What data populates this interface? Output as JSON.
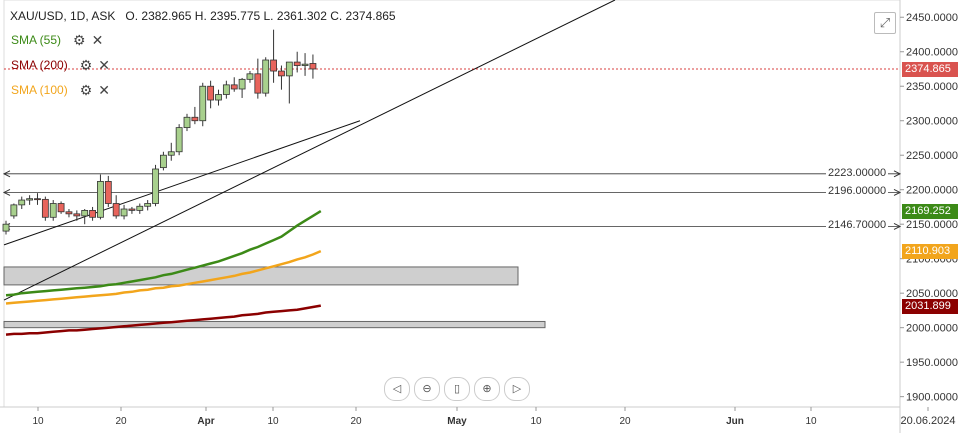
{
  "header": {
    "symbol": "XAU/USD, 1D, ASK",
    "ohlc": "O. 2382.965 H. 2395.775 L. 2361.302 C. 2374.865"
  },
  "legend": [
    {
      "label": "SMA (55)",
      "color": "#3c8a17"
    },
    {
      "label": "SMA (200)",
      "color": "#8b0000"
    },
    {
      "label": "SMA (100)",
      "color": "#f2a51c"
    }
  ],
  "icons": {
    "settings": "gear-icon",
    "remove": "close-icon",
    "expand": "expand-icon"
  },
  "hlines": [
    {
      "value": 2223.0,
      "label": "2223.00000"
    },
    {
      "value": 2196.0,
      "label": "2196.00000"
    },
    {
      "value": 2146.7,
      "label": "2146.70000"
    }
  ],
  "axis_tags": [
    {
      "value": 2374.865,
      "label": "2374.865",
      "color": "#d9534f"
    },
    {
      "value": 2169.252,
      "label": "2169.252",
      "color": "#3c8a17"
    },
    {
      "value": 2110.903,
      "label": "2110.903",
      "color": "#f2a51c"
    },
    {
      "value": 2031.899,
      "label": "2031.899",
      "color": "#8b0000"
    }
  ],
  "chart_data": {
    "type": "candlestick",
    "y_ticks": [
      "2450.0000",
      "2400.0000",
      "2350.0000",
      "2300.0000",
      "2250.0000",
      "2200.0000",
      "2150.0000",
      "2100.0000",
      "2050.0000",
      "2000.0000",
      "1950.0000",
      "1900.0000"
    ],
    "x_ticks": [
      "10",
      "20",
      "Apr",
      "10",
      "20",
      "May",
      "10",
      "20",
      "Jun",
      "10",
      "20.06.2024"
    ],
    "ylim": [
      1885,
      2475
    ],
    "candles": [
      {
        "o": 2140,
        "h": 2155,
        "l": 2135,
        "c": 2150
      },
      {
        "o": 2162,
        "h": 2180,
        "l": 2158,
        "c": 2178
      },
      {
        "o": 2178,
        "h": 2190,
        "l": 2172,
        "c": 2185
      },
      {
        "o": 2185,
        "h": 2192,
        "l": 2178,
        "c": 2187
      },
      {
        "o": 2187,
        "h": 2195,
        "l": 2178,
        "c": 2186
      },
      {
        "o": 2186,
        "h": 2190,
        "l": 2155,
        "c": 2160
      },
      {
        "o": 2160,
        "h": 2185,
        "l": 2155,
        "c": 2180
      },
      {
        "o": 2180,
        "h": 2183,
        "l": 2165,
        "c": 2168
      },
      {
        "o": 2168,
        "h": 2172,
        "l": 2160,
        "c": 2165
      },
      {
        "o": 2165,
        "h": 2170,
        "l": 2155,
        "c": 2162
      },
      {
        "o": 2162,
        "h": 2172,
        "l": 2150,
        "c": 2170
      },
      {
        "o": 2170,
        "h": 2175,
        "l": 2155,
        "c": 2160
      },
      {
        "o": 2160,
        "h": 2222,
        "l": 2157,
        "c": 2212
      },
      {
        "o": 2212,
        "h": 2220,
        "l": 2175,
        "c": 2180
      },
      {
        "o": 2180,
        "h": 2192,
        "l": 2158,
        "c": 2162
      },
      {
        "o": 2162,
        "h": 2178,
        "l": 2157,
        "c": 2172
      },
      {
        "o": 2172,
        "h": 2175,
        "l": 2165,
        "c": 2170
      },
      {
        "o": 2170,
        "h": 2180,
        "l": 2165,
        "c": 2176
      },
      {
        "o": 2176,
        "h": 2185,
        "l": 2170,
        "c": 2180
      },
      {
        "o": 2180,
        "h": 2236,
        "l": 2176,
        "c": 2230
      },
      {
        "o": 2232,
        "h": 2255,
        "l": 2228,
        "c": 2250
      },
      {
        "o": 2250,
        "h": 2268,
        "l": 2242,
        "c": 2255
      },
      {
        "o": 2255,
        "h": 2295,
        "l": 2250,
        "c": 2290
      },
      {
        "o": 2290,
        "h": 2310,
        "l": 2285,
        "c": 2305
      },
      {
        "o": 2305,
        "h": 2320,
        "l": 2295,
        "c": 2300
      },
      {
        "o": 2300,
        "h": 2355,
        "l": 2292,
        "c": 2350
      },
      {
        "o": 2350,
        "h": 2358,
        "l": 2318,
        "c": 2330
      },
      {
        "o": 2330,
        "h": 2345,
        "l": 2322,
        "c": 2338
      },
      {
        "o": 2338,
        "h": 2358,
        "l": 2332,
        "c": 2352
      },
      {
        "o": 2352,
        "h": 2363,
        "l": 2342,
        "c": 2346
      },
      {
        "o": 2346,
        "h": 2362,
        "l": 2333,
        "c": 2360
      },
      {
        "o": 2360,
        "h": 2372,
        "l": 2355,
        "c": 2368
      },
      {
        "o": 2368,
        "h": 2390,
        "l": 2332,
        "c": 2340
      },
      {
        "o": 2340,
        "h": 2392,
        "l": 2335,
        "c": 2388
      },
      {
        "o": 2388,
        "h": 2432,
        "l": 2355,
        "c": 2372
      },
      {
        "o": 2372,
        "h": 2380,
        "l": 2345,
        "c": 2365
      },
      {
        "o": 2365,
        "h": 2385,
        "l": 2325,
        "c": 2385
      },
      {
        "o": 2385,
        "h": 2400,
        "l": 2370,
        "c": 2380
      },
      {
        "o": 2380,
        "h": 2398,
        "l": 2365,
        "c": 2382
      },
      {
        "o": 2383,
        "h": 2396,
        "l": 2361,
        "c": 2375
      }
    ],
    "sma55": [
      2047,
      2048,
      2050,
      2051,
      2052,
      2053,
      2054,
      2055,
      2056,
      2057,
      2058,
      2059,
      2060,
      2062,
      2063,
      2065,
      2067,
      2069,
      2071,
      2073,
      2076,
      2078,
      2081,
      2084,
      2087,
      2090,
      2093,
      2096,
      2100,
      2104,
      2108,
      2113,
      2117,
      2122,
      2127,
      2132,
      2140,
      2148,
      2155,
      2162,
      2169
    ],
    "sma100": [
      2035,
      2036,
      2037,
      2038,
      2039,
      2040,
      2041,
      2042,
      2043,
      2044,
      2045,
      2046,
      2047,
      2048,
      2049,
      2051,
      2052,
      2054,
      2055,
      2057,
      2058,
      2060,
      2061,
      2063,
      2065,
      2067,
      2069,
      2071,
      2073,
      2075,
      2078,
      2080,
      2083,
      2086,
      2089,
      2092,
      2095,
      2099,
      2102,
      2106,
      2111
    ],
    "sma200": [
      1990,
      1991,
      1991,
      1992,
      1992,
      1993,
      1994,
      1995,
      1996,
      1996,
      1997,
      1998,
      1999,
      2000,
      2001,
      2002,
      2003,
      2004,
      2005,
      2006,
      2007,
      2008,
      2009,
      2010,
      2011,
      2012,
      2013,
      2014,
      2015,
      2016,
      2018,
      2019,
      2020,
      2022,
      2023,
      2024,
      2025,
      2026,
      2028,
      2030,
      2032
    ],
    "zones": [
      {
        "top": 2088,
        "bottom": 2062
      },
      {
        "top": 2009,
        "bottom": 2000
      }
    ]
  },
  "navigation": [
    {
      "name": "scroll-left-button",
      "glyph": "◁"
    },
    {
      "name": "zoom-out-button",
      "glyph": "⊖"
    },
    {
      "name": "fit-button",
      "glyph": "▯"
    },
    {
      "name": "zoom-in-button",
      "glyph": "⊕"
    },
    {
      "name": "scroll-right-button",
      "glyph": "▷"
    }
  ]
}
